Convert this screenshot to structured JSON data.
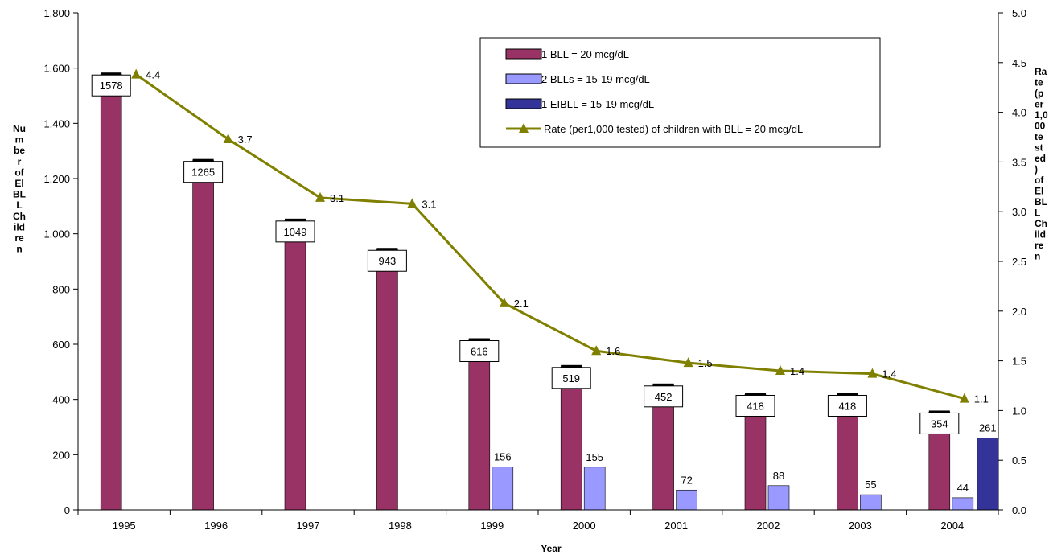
{
  "chart_data": {
    "type": "bar",
    "xlabel": "Year",
    "ylabel_lines": [
      "Nu",
      "m",
      "be",
      "r",
      "of",
      "El",
      "BL",
      "L",
      "Ch",
      "ild",
      "re",
      "n"
    ],
    "y2label_lines": [
      "Ra",
      "te",
      "(p",
      "er",
      "1,0",
      "00",
      "te",
      "st",
      "ed",
      ")",
      "of",
      "El",
      "BL",
      "L",
      "Ch",
      "ild",
      "re",
      "n"
    ],
    "ylim": [
      0,
      1800
    ],
    "yticks": [
      "0",
      "200",
      "400",
      "600",
      "800",
      "1,000",
      "1,200",
      "1,400",
      "1,600",
      "1,800"
    ],
    "y2lim": [
      0,
      5
    ],
    "y2ticks": [
      "0.0",
      "0.5",
      "1.0",
      "1.5",
      "2.0",
      "2.5",
      "3.0",
      "3.5",
      "4.0",
      "4.5",
      "5.0"
    ],
    "categories": [
      "1995",
      "1996",
      "1997",
      "1998",
      "1999",
      "2000",
      "2001",
      "2002",
      "2003",
      "2004"
    ],
    "series": [
      {
        "name": "1 BLL =  20 mcg/dL",
        "color": "#993366",
        "values": [
          1578,
          1265,
          1049,
          943,
          616,
          519,
          452,
          418,
          418,
          354
        ],
        "labels": [
          "1578",
          "1265",
          "1049",
          "943",
          "616",
          "519",
          "452",
          "418",
          "418",
          "354"
        ]
      },
      {
        "name": "2 BLLs = 15-19 mcg/dL",
        "color": "#9999ff",
        "values": [
          null,
          null,
          null,
          null,
          156,
          155,
          72,
          88,
          55,
          44
        ],
        "labels": [
          "",
          "",
          "",
          "",
          "156",
          "155",
          "72",
          "88",
          "55",
          "44"
        ]
      },
      {
        "name": "1 EIBLL = 15-19 mcg/dL",
        "color": "#333399",
        "values": [
          null,
          null,
          null,
          null,
          null,
          null,
          null,
          null,
          null,
          261
        ],
        "labels": [
          "",
          "",
          "",
          "",
          "",
          "",
          "",
          "",
          "",
          "261"
        ]
      }
    ],
    "line_series": {
      "name": "Rate (per1,000 tested) of children with BLL =  20 mcg/dL",
      "color": "#808000",
      "axis": "right",
      "values": [
        4.4,
        3.7,
        3.1,
        3.1,
        2.1,
        1.6,
        1.5,
        1.4,
        1.4,
        1.1
      ],
      "plot_values": [
        4.38,
        3.73,
        3.14,
        3.08,
        2.08,
        1.6,
        1.48,
        1.4,
        1.37,
        1.12
      ],
      "labels": [
        "4.4",
        "3.7",
        "3.1",
        "3.1",
        "2.1",
        "1.6",
        "1.5",
        "1.4",
        "1.4",
        "1.1"
      ]
    },
    "legend": "top-right",
    "grid": false
  }
}
